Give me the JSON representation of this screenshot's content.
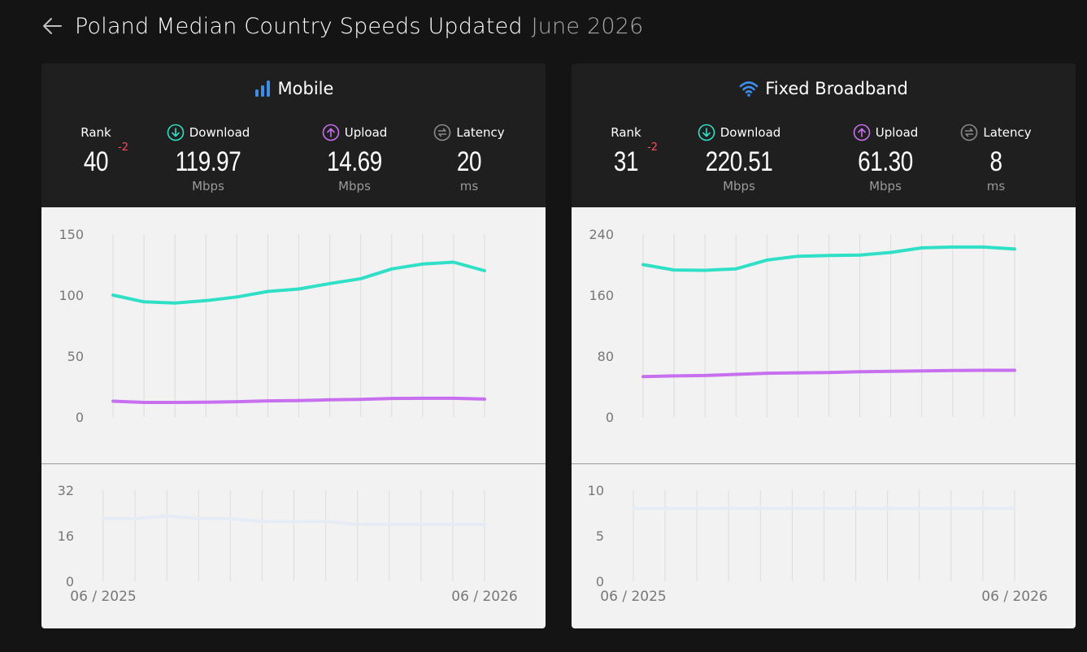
{
  "header": {
    "title": "Poland Median Country Speeds Updated",
    "updated": "June 2026"
  },
  "colors": {
    "download": "#30e0c6",
    "upload": "#c86ff0",
    "latency": "#e6ecf6",
    "rank_change": "#ff4d5e",
    "accent_icon": "#3d8ee8"
  },
  "panels": [
    {
      "title": "Mobile",
      "icon": "signal-bars-icon",
      "rank": {
        "label": "Rank",
        "value": "40",
        "change": "-2"
      },
      "download": {
        "label": "Download",
        "value": "119.97",
        "unit": "Mbps"
      },
      "upload": {
        "label": "Upload",
        "value": "14.69",
        "unit": "Mbps"
      },
      "latency": {
        "label": "Latency",
        "value": "20",
        "unit": "ms"
      }
    },
    {
      "title": "Fixed Broadband",
      "icon": "wifi-icon",
      "rank": {
        "label": "Rank",
        "value": "31",
        "change": "-2"
      },
      "download": {
        "label": "Download",
        "value": "220.51",
        "unit": "Mbps"
      },
      "upload": {
        "label": "Upload",
        "value": "61.30",
        "unit": "Mbps"
      },
      "latency": {
        "label": "Latency",
        "value": "8",
        "unit": "ms"
      }
    }
  ],
  "chart_data": [
    {
      "type": "line",
      "panel": "Mobile",
      "metric": "speed",
      "ylim": [
        0,
        150
      ],
      "yticks": [
        0,
        50,
        100,
        150
      ],
      "x": [
        "06/2025",
        "07/2025",
        "08/2025",
        "09/2025",
        "10/2025",
        "11/2025",
        "12/2025",
        "01/2026",
        "02/2026",
        "03/2026",
        "04/2026",
        "05/2026",
        "06/2026"
      ],
      "series": [
        {
          "name": "Download",
          "values": [
            100,
            94.5,
            93.5,
            95.5,
            98.5,
            103,
            105,
            109.5,
            113.5,
            121.5,
            125.5,
            127,
            120
          ]
        },
        {
          "name": "Upload",
          "values": [
            13,
            12,
            12,
            12.2,
            12.6,
            13.3,
            13.5,
            14.1,
            14.5,
            15.3,
            15.4,
            15.4,
            14.7
          ]
        }
      ],
      "grid": true
    },
    {
      "type": "line",
      "panel": "Mobile",
      "metric": "latency",
      "ylim": [
        0,
        32
      ],
      "yticks": [
        0,
        16,
        32
      ],
      "xtick_labels": [
        "06 / 2025",
        "06 / 2026"
      ],
      "x": [
        "06/2025",
        "07/2025",
        "08/2025",
        "09/2025",
        "10/2025",
        "11/2025",
        "12/2025",
        "01/2026",
        "02/2026",
        "03/2026",
        "04/2026",
        "05/2026",
        "06/2026"
      ],
      "series": [
        {
          "name": "Latency",
          "values": [
            22,
            22,
            23,
            22,
            22,
            21,
            21,
            21,
            20,
            20,
            20,
            20,
            20
          ]
        }
      ],
      "grid": true
    },
    {
      "type": "line",
      "panel": "Fixed Broadband",
      "metric": "speed",
      "ylim": [
        0,
        240
      ],
      "yticks": [
        0,
        80,
        160,
        240
      ],
      "x": [
        "06/2025",
        "07/2025",
        "08/2025",
        "09/2025",
        "10/2025",
        "11/2025",
        "12/2025",
        "01/2026",
        "02/2026",
        "03/2026",
        "04/2026",
        "05/2026",
        "06/2026"
      ],
      "series": [
        {
          "name": "Download",
          "values": [
            200,
            193,
            192.5,
            194.5,
            206,
            211,
            212,
            212.5,
            216,
            222,
            223,
            223,
            220.5
          ]
        },
        {
          "name": "Upload",
          "values": [
            53,
            54,
            54.5,
            56,
            57.5,
            58,
            58.5,
            59.5,
            60,
            60.5,
            61,
            61.3,
            61.3
          ]
        }
      ],
      "grid": true
    },
    {
      "type": "line",
      "panel": "Fixed Broadband",
      "metric": "latency",
      "ylim": [
        0,
        10
      ],
      "yticks": [
        0,
        5,
        10
      ],
      "xtick_labels": [
        "06 / 2025",
        "06 / 2026"
      ],
      "x": [
        "06/2025",
        "07/2025",
        "08/2025",
        "09/2025",
        "10/2025",
        "11/2025",
        "12/2025",
        "01/2026",
        "02/2026",
        "03/2026",
        "04/2026",
        "05/2026",
        "06/2026"
      ],
      "series": [
        {
          "name": "Latency",
          "values": [
            8,
            8,
            8,
            8,
            8,
            8,
            8,
            8,
            8,
            8,
            8,
            8,
            8
          ]
        }
      ],
      "grid": true
    }
  ]
}
